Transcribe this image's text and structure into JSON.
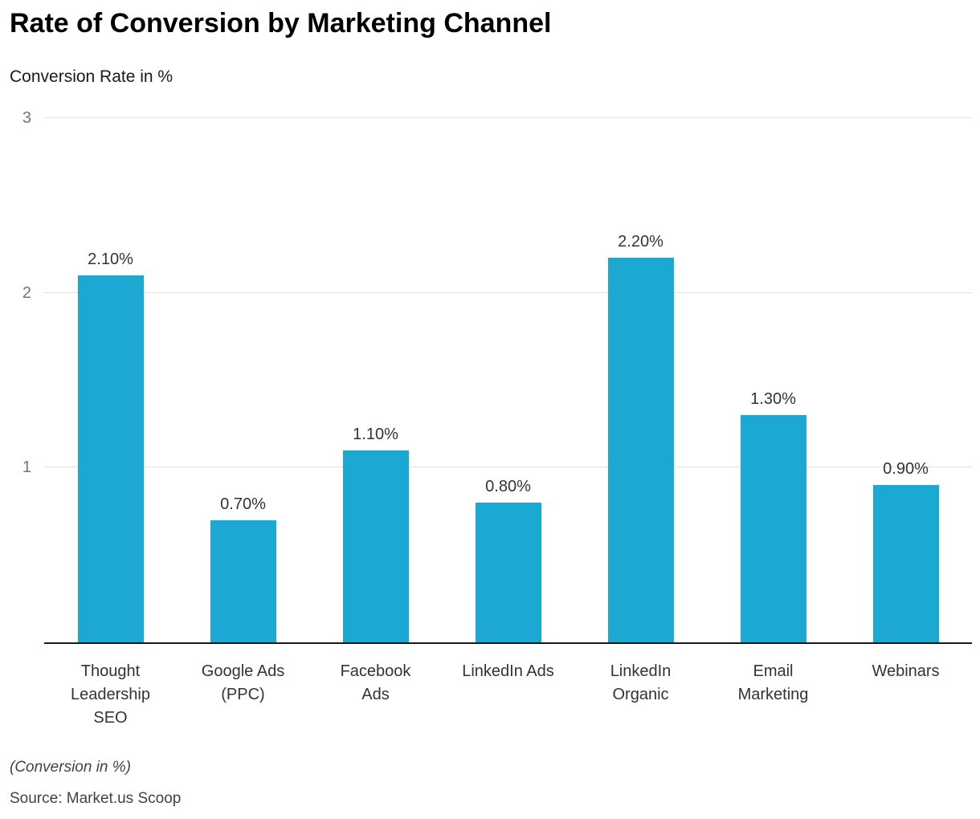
{
  "chart": {
    "title": "Rate of Conversion by Marketing Channel",
    "subtitle": "Conversion Rate in %"
  },
  "footer": {
    "note": "(Conversion in %)",
    "source": "Source: Market.us Scoop"
  },
  "colors": {
    "bar": "#1ba8d2",
    "gridline": "#e2e2e2",
    "axis": "#1a1a1a",
    "tick_text": "#757575",
    "label_text": "#333333"
  },
  "chart_data": {
    "type": "bar",
    "title": "Rate of Conversion by Marketing Channel",
    "xlabel": "",
    "ylabel": "Conversion Rate in %",
    "categories": [
      "Thought\nLeadership\nSEO",
      "Google Ads\n(PPC)",
      "Facebook\nAds",
      "LinkedIn Ads",
      "LinkedIn\nOrganic",
      "Email\nMarketing",
      "Webinars"
    ],
    "values": [
      2.1,
      0.7,
      1.1,
      0.8,
      2.2,
      1.3,
      0.9
    ],
    "value_labels": [
      "2.10%",
      "0.70%",
      "1.10%",
      "0.80%",
      "2.20%",
      "1.30%",
      "0.90%"
    ],
    "ylim": [
      0,
      3
    ],
    "yticks": [
      1,
      2,
      3
    ],
    "grid": true,
    "legend": "none",
    "bar_color": "#1ba8d2"
  }
}
